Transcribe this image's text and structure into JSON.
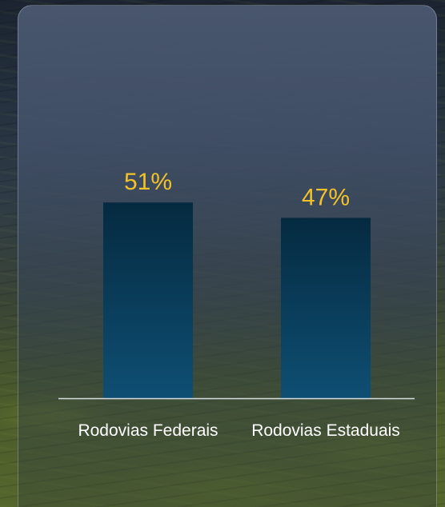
{
  "chart_data": {
    "type": "bar",
    "categories": [
      "Rodovias Federais",
      "Rodovias Estaduais"
    ],
    "values": [
      51,
      47
    ],
    "value_labels": [
      "51%",
      "47%"
    ],
    "ylim": [
      0,
      100
    ],
    "grid": false,
    "legend": "none",
    "colors": {
      "bar_top": "#052a40",
      "bar_bottom": "#0e4f73",
      "value_label": "#f3c22a",
      "category_label": "#ffffff",
      "baseline": "#d8dde3"
    }
  }
}
